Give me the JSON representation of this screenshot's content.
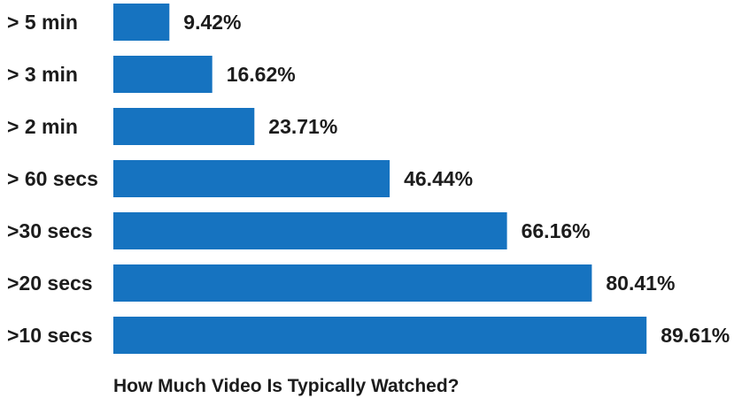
{
  "chart_data": {
    "type": "bar",
    "orientation": "horizontal",
    "title": "How Much Video Is Typically Watched?",
    "xlabel": "",
    "ylabel": "",
    "categories": [
      "> 5 min",
      "> 3 min",
      "> 2 min",
      "> 60 secs",
      ">30 secs",
      ">20 secs",
      ">10 secs"
    ],
    "values": [
      9.42,
      16.62,
      23.71,
      46.44,
      66.16,
      80.41,
      89.61
    ],
    "value_labels": [
      "9.42%",
      "16.62%",
      "23.71%",
      "46.44%",
      "66.16%",
      "80.41%",
      "89.61%"
    ],
    "unit": "%",
    "xlim": [
      0,
      100
    ],
    "bar_color": "#1673c0",
    "text_color": "#1c1c1c",
    "grid": false,
    "legend": "none"
  }
}
